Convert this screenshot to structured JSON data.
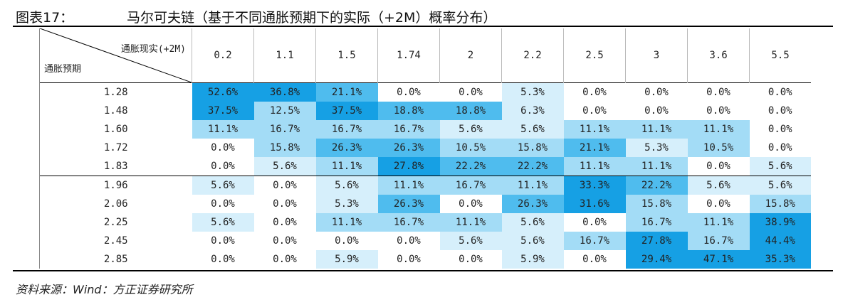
{
  "header": {
    "figure_no": "图表17：",
    "title": "马尔可夫链（基于不同通胀预期下的实际（+2M）概率分布）"
  },
  "table": {
    "corner_top": "通胀现实(+2M)",
    "corner_bottom": "通胀预期",
    "columns": [
      "0.2",
      "1.1",
      "1.5",
      "1.74",
      "2",
      "2.2",
      "2.5",
      "3",
      "3.6",
      "5.5"
    ],
    "rows": [
      {
        "label": "1.28",
        "cells": [
          "52.6%",
          "36.8%",
          "21.1%",
          "0.0%",
          "0.0%",
          "5.3%",
          "0.0%",
          "0.0%",
          "0.0%",
          "0.0%"
        ]
      },
      {
        "label": "1.48",
        "cells": [
          "37.5%",
          "12.5%",
          "37.5%",
          "18.8%",
          "18.8%",
          "6.3%",
          "0.0%",
          "0.0%",
          "0.0%",
          "0.0%"
        ]
      },
      {
        "label": "1.60",
        "cells": [
          "11.1%",
          "16.7%",
          "16.7%",
          "16.7%",
          "5.6%",
          "5.6%",
          "11.1%",
          "11.1%",
          "11.1%",
          "0.0%"
        ]
      },
      {
        "label": "1.72",
        "cells": [
          "0.0%",
          "15.8%",
          "26.3%",
          "26.3%",
          "10.5%",
          "15.8%",
          "21.1%",
          "5.3%",
          "10.5%",
          "0.0%"
        ]
      },
      {
        "label": "1.83",
        "cells": [
          "0.0%",
          "5.6%",
          "11.1%",
          "27.8%",
          "22.2%",
          "22.2%",
          "11.1%",
          "11.1%",
          "0.0%",
          "5.6%"
        ]
      },
      {
        "label": "1.96",
        "cells": [
          "5.6%",
          "0.0%",
          "5.6%",
          "11.1%",
          "16.7%",
          "11.1%",
          "33.3%",
          "22.2%",
          "5.6%",
          "5.6%"
        ]
      },
      {
        "label": "2.06",
        "cells": [
          "0.0%",
          "0.0%",
          "5.3%",
          "26.3%",
          "0.0%",
          "26.3%",
          "31.6%",
          "15.8%",
          "0.0%",
          "15.8%"
        ]
      },
      {
        "label": "2.25",
        "cells": [
          "5.6%",
          "0.0%",
          "11.1%",
          "16.7%",
          "11.1%",
          "5.6%",
          "0.0%",
          "16.7%",
          "11.1%",
          "38.9%"
        ]
      },
      {
        "label": "2.45",
        "cells": [
          "0.0%",
          "0.0%",
          "0.0%",
          "0.0%",
          "5.6%",
          "5.6%",
          "16.7%",
          "27.8%",
          "16.7%",
          "44.4%"
        ]
      },
      {
        "label": "2.85",
        "cells": [
          "0.0%",
          "0.0%",
          "5.9%",
          "0.0%",
          "0.0%",
          "5.9%",
          "0.0%",
          "29.4%",
          "47.1%",
          "35.3%"
        ]
      }
    ]
  },
  "source": "资料来源：Wind：方正证券研究所"
}
